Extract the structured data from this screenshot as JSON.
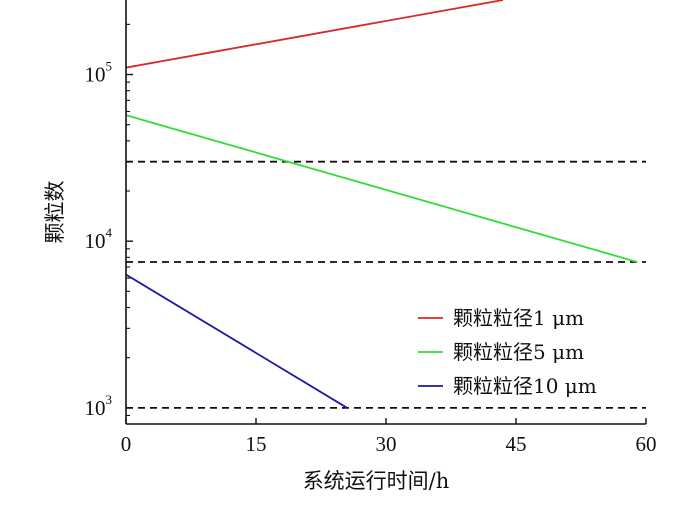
{
  "chart_data": {
    "type": "line",
    "title": "",
    "xlabel": "系统运行时间/h",
    "ylabel": "颗粒数",
    "x_scale": "linear",
    "y_scale": "log",
    "xlim": [
      0,
      60
    ],
    "ylim": [
      800,
      280000
    ],
    "x_ticks": [
      0,
      15,
      30,
      45,
      60
    ],
    "x_tick_labels": [
      "0",
      "15",
      "30",
      "45",
      "60"
    ],
    "y_ticks": [
      {
        "value": 1000,
        "base": "10",
        "exp": "3"
      },
      {
        "value": 10000,
        "base": "10",
        "exp": "4"
      },
      {
        "value": 100000,
        "base": "10",
        "exp": "5"
      }
    ],
    "grid": false,
    "legend_position": "lower-right",
    "series": [
      {
        "name": "颗粒粒径1  μm",
        "color": "#d42a2a",
        "x": [
          0,
          43.5
        ],
        "y": [
          110000,
          280000
        ]
      },
      {
        "name": "颗粒粒径5  μm",
        "color": "#33dd33",
        "x": [
          0,
          59
        ],
        "y": [
          57000,
          7500
        ]
      },
      {
        "name": "颗粒粒径10  μm",
        "color": "#1a1aa6",
        "x": [
          0,
          25.5
        ],
        "y": [
          6300,
          1000
        ]
      }
    ],
    "reference_lines": [
      {
        "y": 30000,
        "style": "dashed",
        "color": "#111111",
        "x_range": [
          0,
          60
        ]
      },
      {
        "y": 7500,
        "style": "dashed",
        "color": "#111111",
        "x_range": [
          0,
          60
        ]
      },
      {
        "y": 1000,
        "style": "dashed",
        "color": "#111111",
        "x_range": [
          0,
          60
        ]
      }
    ]
  }
}
